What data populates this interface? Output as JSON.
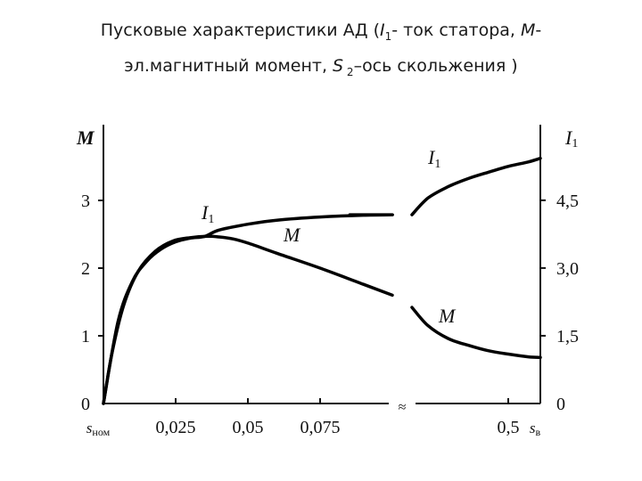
{
  "title": {
    "line1_a": "Пусковые характеристики АД (",
    "line1_i": "I",
    "line1_sub": "1",
    "line1_b": "- ток статора, ",
    "line1_m": "М",
    "line1_c": "-",
    "line2_a": "эл.магнитный момент, ",
    "line2_s": "S",
    "line2_sub": " 2",
    "line2_b": "–ось скольжения  )"
  },
  "chart_data": {
    "type": "line",
    "title": "",
    "xlabel": "",
    "y_left_label": "M",
    "y_right_label": "I",
    "y_right_label_sub": "1",
    "y_left_ticks": [
      "0",
      "1",
      "2",
      "3"
    ],
    "y_right_ticks": [
      "0",
      "1,5",
      "3,0",
      "4,5"
    ],
    "x_ticks": [
      "s",
      "0,025",
      "0,05",
      "0,075",
      "0,5",
      "s"
    ],
    "x_tick_subs": [
      "ном",
      "",
      "",
      "",
      "",
      "в"
    ],
    "x_axis_break": true,
    "x_axis_break_symbol": "≈",
    "series": [
      {
        "name": "I",
        "name_sub": "1",
        "axis": "right",
        "color": "#000000",
        "segments": [
          {
            "x": [
              0,
              0.005,
              0.01,
              0.015,
              0.02,
              0.025,
              0.03,
              0.035,
              0.04,
              0.05,
              0.06,
              0.075,
              0.09,
              0.1,
              0.105
            ],
            "y": [
              0,
              1.8,
              2.7,
              3.15,
              3.42,
              3.58,
              3.66,
              3.7,
              3.84,
              3.97,
              4.06,
              4.13,
              4.17,
              4.18,
              4.18
            ]
          },
          {
            "x": [
              0.26,
              0.3,
              0.35,
              0.4,
              0.45,
              0.5,
              0.55,
              0.58
            ],
            "y": [
              4.18,
              4.55,
              4.8,
              4.98,
              5.12,
              5.25,
              5.35,
              5.43
            ]
          }
        ]
      },
      {
        "name": "M",
        "axis": "left",
        "color": "#000000",
        "segments": [
          {
            "x": [
              0,
              0.003,
              0.007,
              0.012,
              0.018,
              0.024,
              0.03,
              0.036,
              0.04,
              0.045,
              0.05,
              0.06,
              0.075,
              0.09,
              0.1
            ],
            "y": [
              0,
              0.75,
              1.45,
              1.95,
              2.25,
              2.4,
              2.45,
              2.47,
              2.46,
              2.43,
              2.37,
              2.22,
              2.0,
              1.76,
              1.6
            ]
          },
          {
            "x": [
              0.26,
              0.3,
              0.35,
              0.4,
              0.45,
              0.5,
              0.55,
              0.58
            ],
            "y": [
              1.42,
              1.15,
              0.96,
              0.86,
              0.78,
              0.73,
              0.69,
              0.68
            ]
          }
        ]
      }
    ]
  }
}
